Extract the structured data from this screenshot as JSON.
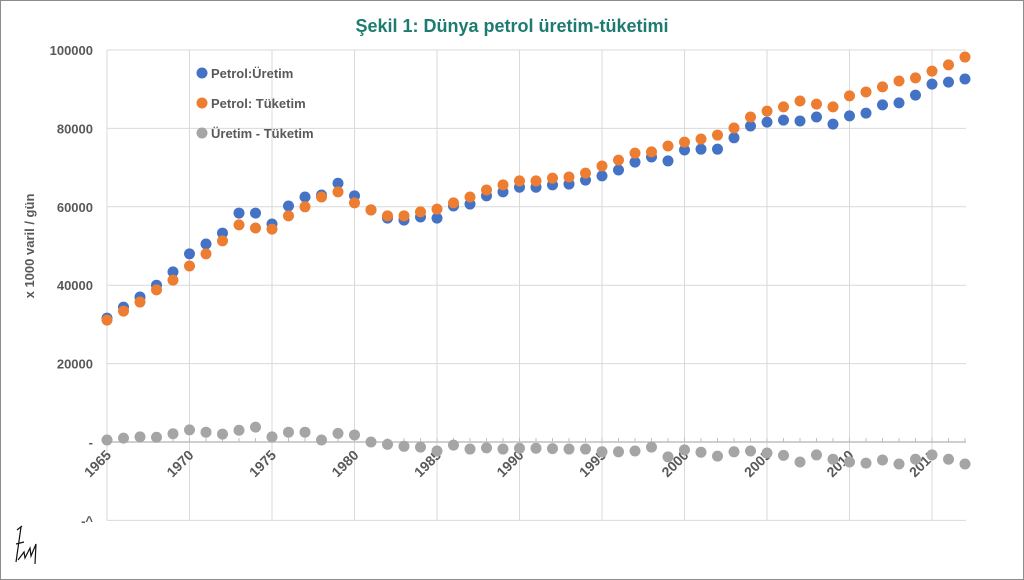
{
  "chart_data": {
    "type": "scatter",
    "title": "Şekil 1: Dünya petrol üretim-tüketimi",
    "xlabel": "",
    "ylabel": "x 1000 varil / gün",
    "xlim": [
      1965,
      2017
    ],
    "ylim": [
      -20000,
      100000
    ],
    "grid": true,
    "legend_position": "top-left",
    "x_ticks": [
      "1965",
      "1970",
      "1975",
      "1980",
      "1985",
      "1990",
      "1995",
      "2000",
      "2005",
      "2010",
      "2015"
    ],
    "y_ticks": [
      "100000",
      "80000",
      "60000",
      "40000",
      "20000",
      "-",
      "-^"
    ],
    "x": [
      1965,
      1966,
      1967,
      1968,
      1969,
      1970,
      1971,
      1972,
      1973,
      1974,
      1975,
      1976,
      1977,
      1978,
      1979,
      1980,
      1981,
      1982,
      1983,
      1984,
      1985,
      1986,
      1987,
      1988,
      1989,
      1990,
      1991,
      1992,
      1993,
      1994,
      1995,
      1996,
      1997,
      1998,
      1999,
      2000,
      2001,
      2002,
      2003,
      2004,
      2005,
      2006,
      2007,
      2008,
      2009,
      2010,
      2011,
      2012,
      2013,
      2014,
      2015,
      2016,
      2017
    ],
    "series": [
      {
        "name": "Petrol:Üretim",
        "color": "#4472c4",
        "values": [
          31600,
          34400,
          37000,
          40000,
          43400,
          48000,
          50500,
          53300,
          58400,
          58400,
          55600,
          60200,
          62500,
          63000,
          66000,
          62800,
          59200,
          57100,
          56600,
          57400,
          57100,
          60200,
          60700,
          62800,
          63800,
          65000,
          65000,
          65600,
          65800,
          66800,
          67900,
          69400,
          71400,
          72700,
          71700,
          74500,
          74700,
          74700,
          77600,
          80600,
          81600,
          82100,
          81900,
          82900,
          81100,
          83200,
          83900,
          86000,
          86500,
          88500,
          91300,
          91800,
          92600
        ]
      },
      {
        "name": "Petrol: Tüketim",
        "color": "#ed7d31",
        "values": [
          31100,
          33400,
          35700,
          38800,
          41300,
          44900,
          48000,
          51300,
          55400,
          54600,
          54300,
          57700,
          60000,
          62500,
          63800,
          61000,
          59200,
          57700,
          57700,
          58700,
          59400,
          61000,
          62500,
          64300,
          65600,
          66600,
          66600,
          67300,
          67600,
          68600,
          70400,
          71900,
          73700,
          74000,
          75500,
          76500,
          77300,
          78300,
          80100,
          82900,
          84400,
          85500,
          87000,
          86200,
          85500,
          88300,
          89300,
          90600,
          92100,
          92900,
          94600,
          96200,
          98200
        ]
      },
      {
        "name": "Üretim - Tüketim",
        "color": "#a5a5a5",
        "values": [
          500,
          1000,
          1300,
          1200,
          2100,
          3100,
          2500,
          2000,
          3000,
          3800,
          1300,
          2500,
          2500,
          500,
          2200,
          1800,
          0,
          -600,
          -1100,
          -1300,
          -2300,
          -800,
          -1800,
          -1500,
          -1800,
          -1600,
          -1600,
          -1700,
          -1800,
          -1800,
          -2500,
          -2500,
          -2300,
          -1300,
          -3800,
          -2000,
          -2600,
          -3600,
          -2500,
          -2300,
          -2800,
          -3400,
          -5100,
          -3300,
          -4400,
          -5100,
          -5400,
          -4600,
          -5600,
          -4400,
          -3300,
          -4400,
          -5600
        ]
      }
    ]
  }
}
